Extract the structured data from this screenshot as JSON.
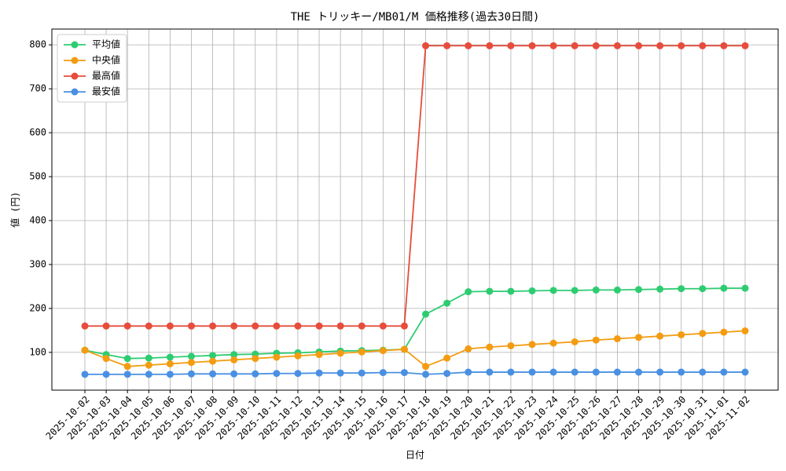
{
  "chart_data": {
    "type": "line",
    "title": "THE トリッキー/MB01/M 価格推移(過去30日間)",
    "x_label": "日付",
    "y_label": "値 (円)",
    "categories": [
      "2025-10-02",
      "2025-10-03",
      "2025-10-04",
      "2025-10-05",
      "2025-10-06",
      "2025-10-07",
      "2025-10-08",
      "2025-10-09",
      "2025-10-10",
      "2025-10-11",
      "2025-10-12",
      "2025-10-13",
      "2025-10-14",
      "2025-10-15",
      "2025-10-16",
      "2025-10-17",
      "2025-10-18",
      "2025-10-19",
      "2025-10-20",
      "2025-10-21",
      "2025-10-22",
      "2025-10-23",
      "2025-10-24",
      "2025-10-25",
      "2025-10-26",
      "2025-10-27",
      "2025-10-28",
      "2025-10-29",
      "2025-10-30",
      "2025-10-31",
      "2025-11-01",
      "2025-11-02"
    ],
    "series": [
      {
        "name": "平均値",
        "color": "#2ecc71",
        "values": [
          105,
          95,
          86,
          87,
          89,
          91,
          93,
          95,
          96,
          98,
          99,
          101,
          103,
          104,
          105,
          107,
          187,
          212,
          238,
          239,
          239,
          240,
          241,
          241,
          242,
          242,
          243,
          244,
          245,
          245,
          246,
          246
        ]
      },
      {
        "name": "中央値",
        "color": "#f39c12",
        "values": [
          105,
          86,
          68,
          71,
          74,
          77,
          80,
          83,
          86,
          89,
          92,
          95,
          98,
          101,
          104,
          107,
          68,
          87,
          108,
          112,
          115,
          118,
          121,
          124,
          128,
          131,
          134,
          137,
          140,
          143,
          146,
          149
        ]
      },
      {
        "name": "最高値",
        "color": "#e74c3c",
        "values": [
          160,
          160,
          160,
          160,
          160,
          160,
          160,
          160,
          160,
          160,
          160,
          160,
          160,
          160,
          160,
          160,
          798,
          798,
          798,
          798,
          798,
          798,
          798,
          798,
          798,
          798,
          798,
          798,
          798,
          798,
          798,
          798
        ]
      },
      {
        "name": "最安値",
        "color": "#4a90e2",
        "values": [
          50,
          50,
          50,
          50,
          50,
          51,
          51,
          51,
          51,
          52,
          52,
          53,
          53,
          53,
          54,
          54,
          50,
          52,
          55,
          55,
          55,
          55,
          55,
          55,
          55,
          55,
          55,
          55,
          55,
          55,
          55,
          55
        ]
      }
    ],
    "ylim": [
      14,
      836
    ],
    "yticks": [
      100,
      200,
      300,
      400,
      500,
      600,
      700,
      800
    ],
    "grid": true,
    "legend": "upper-left"
  }
}
